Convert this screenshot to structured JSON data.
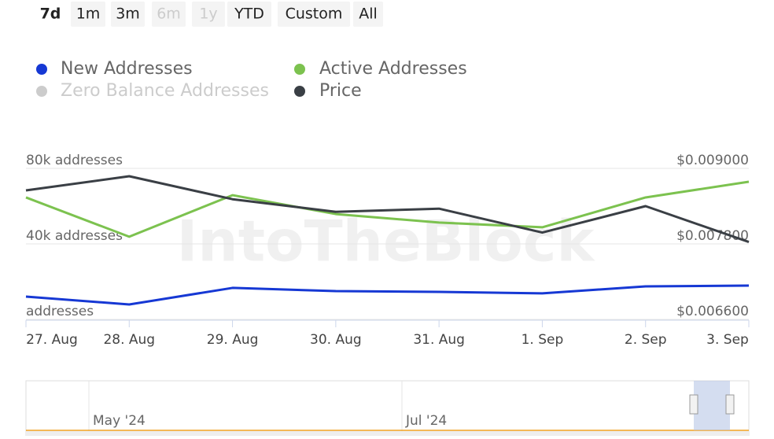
{
  "range_buttons": {
    "labels": [
      "7d",
      "1m",
      "3m",
      "6m",
      "1y",
      "YTD",
      "Custom",
      "All"
    ],
    "selected": 0,
    "disabled": [
      3,
      4
    ]
  },
  "chart_data": {
    "type": "line",
    "watermark": "IntoTheBlock",
    "categories": [
      "27. Aug",
      "28. Aug",
      "29. Aug",
      "30. Aug",
      "31. Aug",
      "1. Sep",
      "2. Sep",
      "3. Sep"
    ],
    "series": [
      {
        "name": "New Addresses",
        "color": "#1638d4",
        "values": [
          12100,
          7900,
          16700,
          15000,
          14600,
          13800,
          17500,
          17900
        ]
      },
      {
        "name": "Active Addresses",
        "color": "#7cc24f",
        "values": [
          64600,
          43800,
          65800,
          55800,
          51300,
          48800,
          64600,
          72900
        ]
      },
      {
        "name": "Price",
        "color": "#3a3f45",
        "axis": "y2",
        "values": [
          0.00865,
          0.008875,
          0.00851,
          0.00831,
          0.00836,
          0.00798,
          0.0084,
          0.00783
        ]
      }
    ],
    "hidden_series": [
      {
        "name": "Zero Balance Addresses",
        "color": "#cccccc"
      }
    ],
    "ylim": [
      0,
      80000
    ],
    "yticks": [
      {
        "value": 80000,
        "label": "80k addresses"
      },
      {
        "value": 40000,
        "label": "40k addresses"
      },
      {
        "value": 0,
        "label": "addresses"
      }
    ],
    "y2lim": [
      0.0066,
      0.009
    ],
    "y2ticks": [
      {
        "value": 0.009,
        "label": "$0.009000"
      },
      {
        "value": 0.0078,
        "label": "$0.007800"
      },
      {
        "value": 0.0066,
        "label": "$0.006600"
      }
    ],
    "grid": true,
    "navigator_labels": [
      "May '24",
      "Jul '24"
    ]
  }
}
